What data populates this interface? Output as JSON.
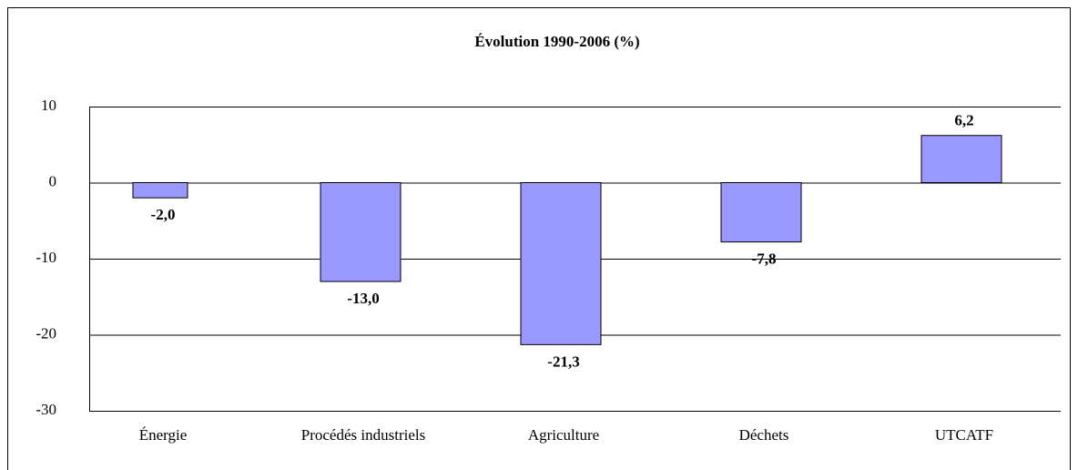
{
  "chart_data": {
    "type": "bar",
    "title": "Évolution 1990-2006 (%)",
    "categories": [
      "Énergie",
      "Procédés industriels",
      "Agriculture",
      "Déchets",
      "UTCATF"
    ],
    "values": [
      -2.0,
      -13.0,
      -21.3,
      -7.8,
      6.2
    ],
    "value_labels": [
      "-2,0",
      "-13,0",
      "-21,3",
      "-7,8",
      "6,2"
    ],
    "color": "#9999ff",
    "ylim": [
      -30,
      10
    ],
    "yticks": [
      -30,
      -20,
      -10,
      0,
      10
    ],
    "grid": true
  }
}
